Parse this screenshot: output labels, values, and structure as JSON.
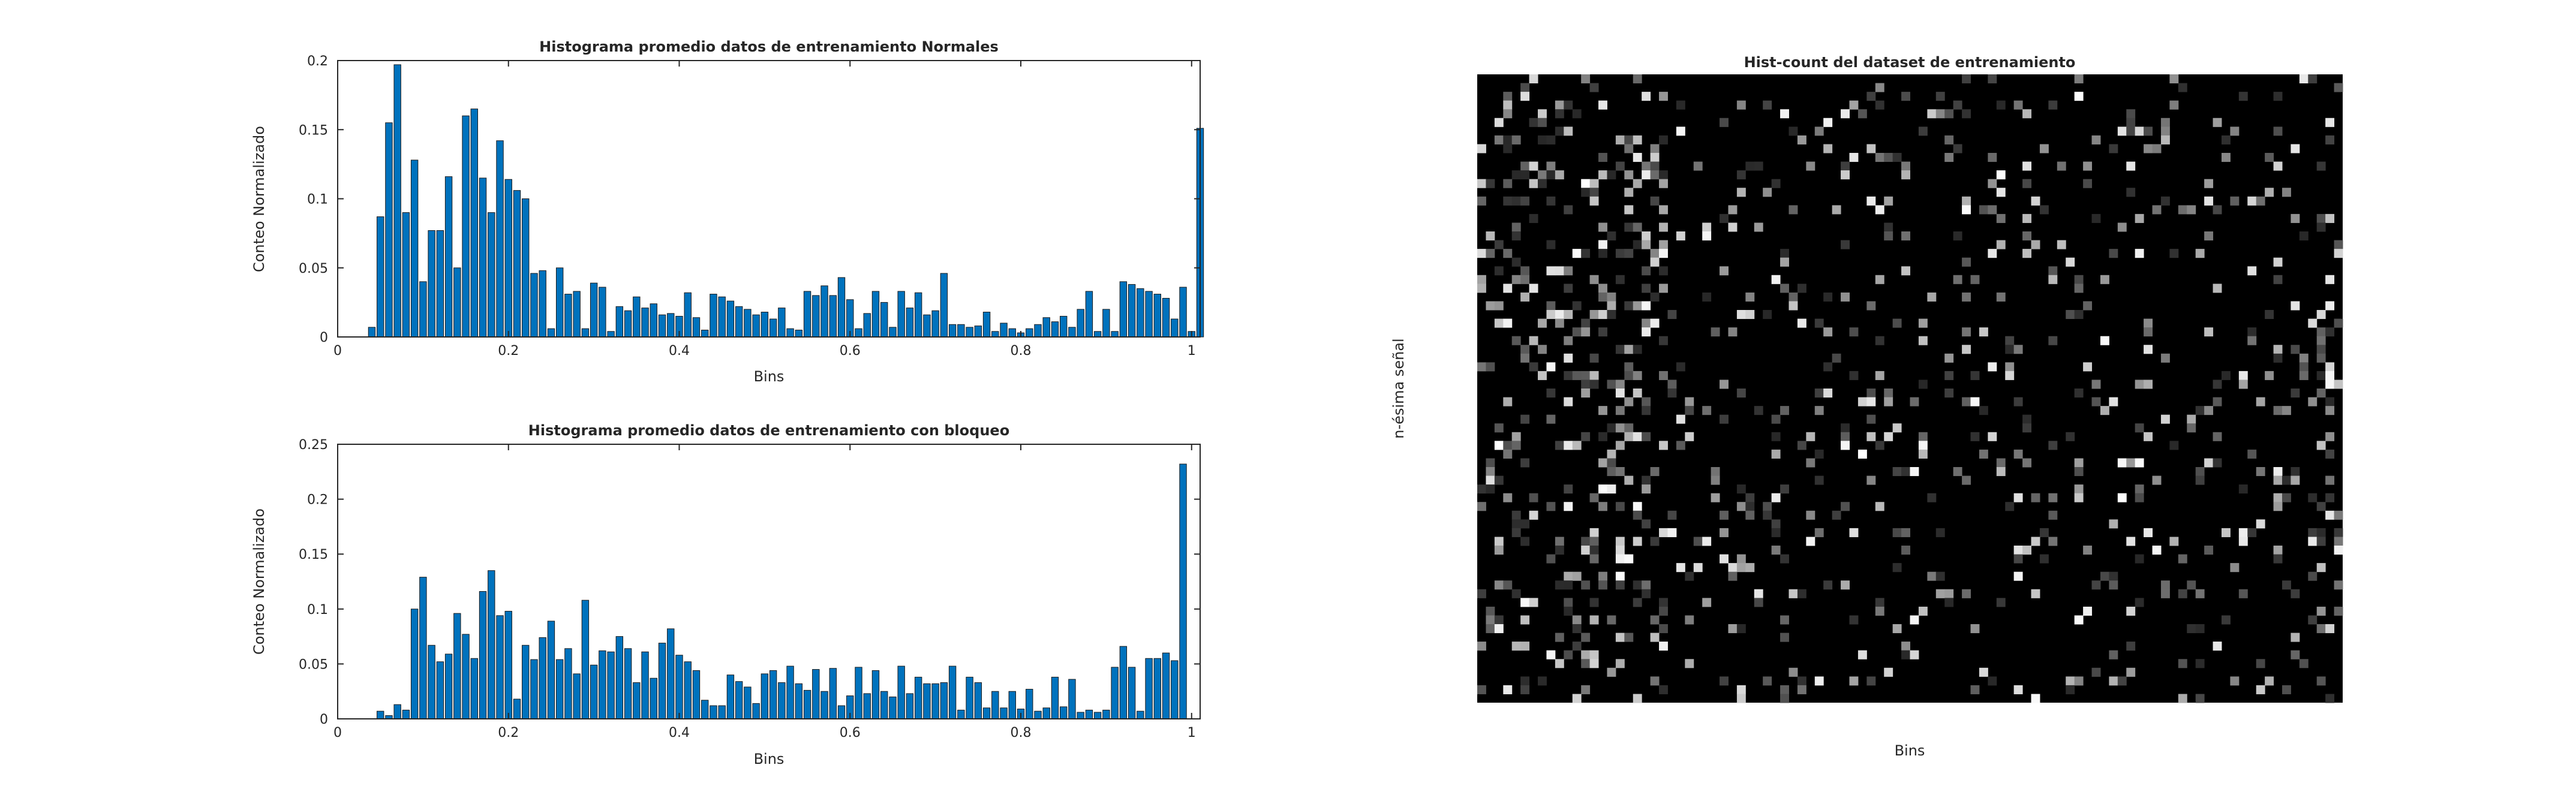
{
  "colors": {
    "bar": "#0072BD",
    "axis": "#262626",
    "edge": "#1a1a1a"
  },
  "chart_data": [
    {
      "type": "bar",
      "title": "Histograma promedio datos de entrenamiento Normales",
      "xlabel": "Bins",
      "ylabel": "Conteo Normalizado",
      "xlim": [
        0,
        1.01
      ],
      "ylim": [
        0,
        0.2
      ],
      "xticks": [
        0,
        0.2,
        0.4,
        0.6,
        0.8,
        1
      ],
      "xtick_labels": [
        "0",
        "0.2",
        "0.4",
        "0.6",
        "0.8",
        "1"
      ],
      "yticks": [
        0,
        0.05,
        0.1,
        0.15,
        0.2
      ],
      "ytick_labels": [
        "0",
        "0.05",
        "0.1",
        "0.15",
        "0.2"
      ],
      "x_start": 0.01,
      "x_step": 0.01,
      "values": [
        0,
        0,
        0,
        0.007,
        0.087,
        0.155,
        0.197,
        0.09,
        0.128,
        0.04,
        0.077,
        0.077,
        0.116,
        0.05,
        0.16,
        0.165,
        0.115,
        0.09,
        0.142,
        0.114,
        0.106,
        0.1,
        0.046,
        0.048,
        0.006,
        0.05,
        0.031,
        0.033,
        0.006,
        0.039,
        0.036,
        0.004,
        0.022,
        0.019,
        0.029,
        0.021,
        0.024,
        0.016,
        0.017,
        0.015,
        0.032,
        0.014,
        0.005,
        0.031,
        0.029,
        0.026,
        0.022,
        0.02,
        0.016,
        0.018,
        0.013,
        0.021,
        0.006,
        0.005,
        0.033,
        0.03,
        0.037,
        0.03,
        0.043,
        0.027,
        0.006,
        0.017,
        0.033,
        0.025,
        0.007,
        0.033,
        0.021,
        0.032,
        0.016,
        0.019,
        0.046,
        0.009,
        0.009,
        0.007,
        0.008,
        0.018,
        0.004,
        0.01,
        0.006,
        0.003,
        0.006,
        0.009,
        0.014,
        0.011,
        0.015,
        0.007,
        0.02,
        0.033,
        0.004,
        0.02,
        0.004,
        0.04,
        0.038,
        0.035,
        0.033,
        0.031,
        0.028,
        0.013,
        0.036,
        0.004,
        0.151
      ]
    },
    {
      "type": "bar",
      "title": "Histograma promedio datos de entrenamiento con bloqueo",
      "xlabel": "Bins",
      "ylabel": "Conteo Normalizado",
      "xlim": [
        0,
        1.01
      ],
      "ylim": [
        0,
        0.25
      ],
      "xticks": [
        0,
        0.2,
        0.4,
        0.6,
        0.8,
        1
      ],
      "xtick_labels": [
        "0",
        "0.2",
        "0.4",
        "0.6",
        "0.8",
        "1"
      ],
      "yticks": [
        0,
        0.05,
        0.1,
        0.15,
        0.2,
        0.25
      ],
      "ytick_labels": [
        "0",
        "0.05",
        "0.1",
        "0.15",
        "0.2",
        "0.25"
      ],
      "x_start": 0.01,
      "x_step": 0.01,
      "values": [
        0,
        0,
        0,
        0,
        0.007,
        0.003,
        0.013,
        0.008,
        0.1,
        0.129,
        0.067,
        0.052,
        0.059,
        0.096,
        0.077,
        0.055,
        0.116,
        0.135,
        0.094,
        0.098,
        0.018,
        0.067,
        0.054,
        0.074,
        0.089,
        0.054,
        0.064,
        0.041,
        0.108,
        0.049,
        0.062,
        0.061,
        0.075,
        0.064,
        0.033,
        0.061,
        0.037,
        0.069,
        0.082,
        0.058,
        0.052,
        0.044,
        0.017,
        0.012,
        0.012,
        0.04,
        0.034,
        0.029,
        0.014,
        0.041,
        0.044,
        0.033,
        0.048,
        0.032,
        0.026,
        0.045,
        0.025,
        0.046,
        0.012,
        0.021,
        0.047,
        0.023,
        0.044,
        0.025,
        0.02,
        0.048,
        0.023,
        0.038,
        0.032,
        0.032,
        0.033,
        0.048,
        0.008,
        0.038,
        0.033,
        0.01,
        0.025,
        0.01,
        0.025,
        0.009,
        0.027,
        0.007,
        0.01,
        0.038,
        0.011,
        0.036,
        0.006,
        0.008,
        0.006,
        0.008,
        0.047,
        0.066,
        0.047,
        0.007,
        0.055,
        0.055,
        0.06,
        0.053,
        0.232
      ]
    },
    {
      "type": "heatmap",
      "title": "Hist-count del dataset de entrenamiento",
      "xlabel": "Bins",
      "ylabel": "n-ésima señal",
      "colormap": "gray",
      "columns": 100,
      "rows": 72,
      "background_value": 0
    }
  ]
}
